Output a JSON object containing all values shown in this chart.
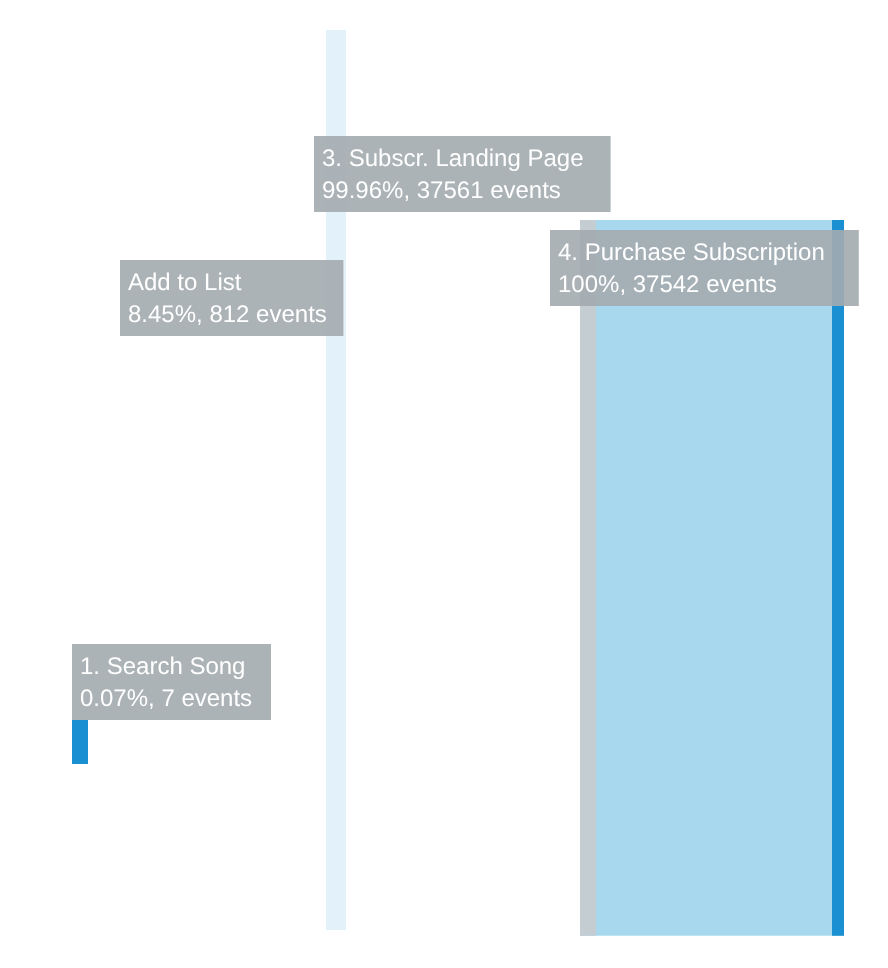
{
  "chart_data": {
    "type": "other",
    "categories": [
      "1. Search Song",
      "Add to List",
      "3. Subscr. Landing Page",
      "4. Purchase Subscription"
    ],
    "values": [
      7,
      812,
      37561,
      37542
    ],
    "value_labels": [
      "0.07%, 7 events",
      "8.45%, 812 events",
      "99.96%, 37561 events",
      "100%, 37542 events"
    ]
  }
}
